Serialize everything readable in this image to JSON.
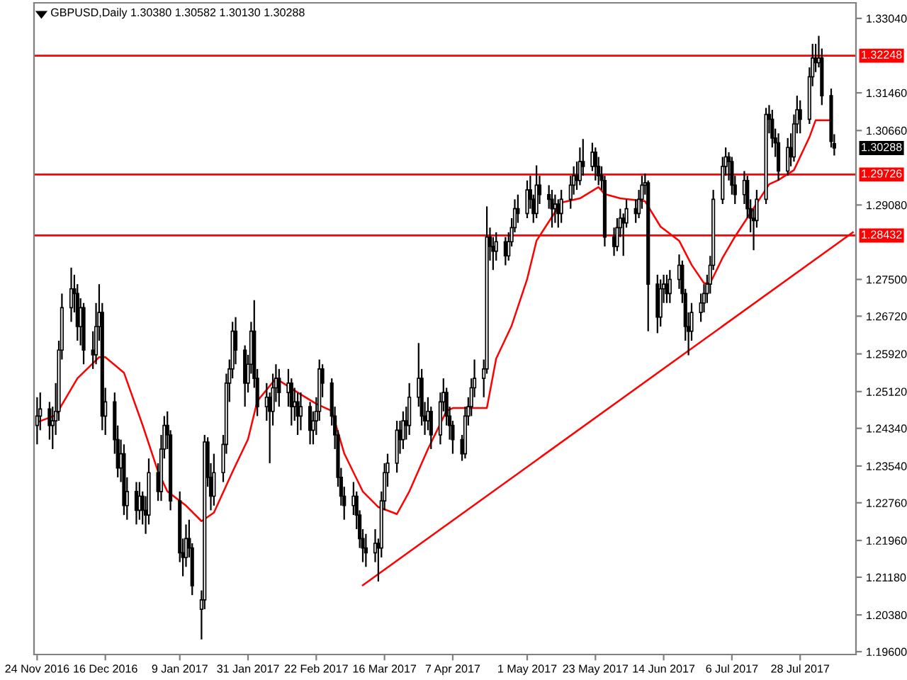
{
  "chart_data": {
    "type": "candlestick",
    "title": "GBPUSD,Daily 1.30380 1.30582 1.30130 1.30288",
    "x": [
      "2016-11-24",
      "2016-11-25",
      "2016-11-28",
      "2016-11-29",
      "2016-11-30",
      "2016-12-01",
      "2016-12-02",
      "2016-12-05",
      "2016-12-06",
      "2016-12-07",
      "2016-12-08",
      "2016-12-09",
      "2016-12-12",
      "2016-12-13",
      "2016-12-14",
      "2016-12-15",
      "2016-12-16",
      "2016-12-19",
      "2016-12-20",
      "2016-12-21",
      "2016-12-22",
      "2016-12-23",
      "2016-12-26",
      "2016-12-27",
      "2016-12-28",
      "2016-12-29",
      "2016-12-30",
      "2017-01-02",
      "2017-01-03",
      "2017-01-04",
      "2017-01-05",
      "2017-01-06",
      "2017-01-09",
      "2017-01-10",
      "2017-01-11",
      "2017-01-12",
      "2017-01-13",
      "2017-01-16",
      "2017-01-17",
      "2017-01-18",
      "2017-01-19",
      "2017-01-20",
      "2017-01-23",
      "2017-01-24",
      "2017-01-25",
      "2017-01-26",
      "2017-01-27",
      "2017-01-30",
      "2017-01-31",
      "2017-02-01",
      "2017-02-02",
      "2017-02-03",
      "2017-02-06",
      "2017-02-07",
      "2017-02-08",
      "2017-02-09",
      "2017-02-10",
      "2017-02-13",
      "2017-02-14",
      "2017-02-15",
      "2017-02-16",
      "2017-02-17",
      "2017-02-20",
      "2017-02-21",
      "2017-02-22",
      "2017-02-23",
      "2017-02-24",
      "2017-02-27",
      "2017-02-28",
      "2017-03-01",
      "2017-03-02",
      "2017-03-03",
      "2017-03-06",
      "2017-03-07",
      "2017-03-08",
      "2017-03-09",
      "2017-03-10",
      "2017-03-13",
      "2017-03-14",
      "2017-03-15",
      "2017-03-16",
      "2017-03-17",
      "2017-03-20",
      "2017-03-21",
      "2017-03-22",
      "2017-03-23",
      "2017-03-24",
      "2017-03-27",
      "2017-03-28",
      "2017-03-29",
      "2017-03-30",
      "2017-03-31",
      "2017-04-03",
      "2017-04-04",
      "2017-04-05",
      "2017-04-06",
      "2017-04-07",
      "2017-04-10",
      "2017-04-11",
      "2017-04-12",
      "2017-04-13",
      "2017-04-14",
      "2017-04-17",
      "2017-04-18",
      "2017-04-19",
      "2017-04-20",
      "2017-04-21",
      "2017-04-24",
      "2017-04-25",
      "2017-04-26",
      "2017-04-27",
      "2017-04-28",
      "2017-05-01",
      "2017-05-02",
      "2017-05-03",
      "2017-05-04",
      "2017-05-05",
      "2017-05-08",
      "2017-05-09",
      "2017-05-10",
      "2017-05-11",
      "2017-05-12",
      "2017-05-15",
      "2017-05-16",
      "2017-05-17",
      "2017-05-18",
      "2017-05-19",
      "2017-05-22",
      "2017-05-23",
      "2017-05-24",
      "2017-05-25",
      "2017-05-26",
      "2017-05-29",
      "2017-05-30",
      "2017-05-31",
      "2017-06-01",
      "2017-06-02",
      "2017-06-05",
      "2017-06-06",
      "2017-06-07",
      "2017-06-08",
      "2017-06-09",
      "2017-06-12",
      "2017-06-13",
      "2017-06-14",
      "2017-06-15",
      "2017-06-16",
      "2017-06-19",
      "2017-06-20",
      "2017-06-21",
      "2017-06-22",
      "2017-06-23",
      "2017-06-26",
      "2017-06-27",
      "2017-06-28",
      "2017-06-29",
      "2017-06-30",
      "2017-07-03",
      "2017-07-04",
      "2017-07-05",
      "2017-07-06",
      "2017-07-07",
      "2017-07-10",
      "2017-07-11",
      "2017-07-12",
      "2017-07-13",
      "2017-07-14",
      "2017-07-17",
      "2017-07-18",
      "2017-07-19",
      "2017-07-20",
      "2017-07-21",
      "2017-07-24",
      "2017-07-25",
      "2017-07-26",
      "2017-07-27",
      "2017-07-28",
      "2017-07-31",
      "2017-08-01",
      "2017-08-02",
      "2017-08-03",
      "2017-08-04",
      "2017-08-07",
      "2017-08-08"
    ],
    "series": [
      {
        "type": "candlestick",
        "color": "#000000",
        "ohlc": [
          [
            1.244,
            1.25,
            1.24,
            1.246
          ],
          [
            1.246,
            1.251,
            1.243,
            1.2475
          ],
          [
            1.2475,
            1.249,
            1.241,
            1.244
          ],
          [
            1.244,
            1.248,
            1.239,
            1.245
          ],
          [
            1.245,
            1.253,
            1.242,
            1.247
          ],
          [
            1.247,
            1.262,
            1.245,
            1.26
          ],
          [
            1.26,
            1.272,
            1.258,
            1.269
          ],
          [
            1.269,
            1.2775,
            1.266,
            1.273
          ],
          [
            1.273,
            1.276,
            1.268,
            1.272
          ],
          [
            1.272,
            1.274,
            1.262,
            1.265
          ],
          [
            1.265,
            1.271,
            1.261,
            1.269
          ],
          [
            1.269,
            1.27,
            1.257,
            1.26
          ],
          [
            1.26,
            1.264,
            1.256,
            1.259
          ],
          [
            1.259,
            1.27,
            1.257,
            1.265
          ],
          [
            1.265,
            1.274,
            1.262,
            1.268
          ],
          [
            1.268,
            1.27,
            1.243,
            1.246
          ],
          [
            1.246,
            1.252,
            1.242,
            1.249
          ],
          [
            1.249,
            1.251,
            1.238,
            1.241
          ],
          [
            1.241,
            1.244,
            1.233,
            1.235
          ],
          [
            1.235,
            1.241,
            1.232,
            1.238
          ],
          [
            1.238,
            1.24,
            1.225,
            1.227
          ],
          [
            1.227,
            1.233,
            1.224,
            1.23
          ],
          [
            1.23,
            1.232,
            1.223,
            1.226
          ],
          [
            1.226,
            1.232,
            1.224,
            1.229
          ],
          [
            1.229,
            1.23,
            1.223,
            1.226
          ],
          [
            1.226,
            1.229,
            1.221,
            1.225
          ],
          [
            1.225,
            1.237,
            1.223,
            1.234
          ],
          [
            1.234,
            1.236,
            1.228,
            1.23
          ],
          [
            1.23,
            1.242,
            1.228,
            1.239
          ],
          [
            1.239,
            1.246,
            1.237,
            1.244
          ],
          [
            1.244,
            1.247,
            1.239,
            1.242
          ],
          [
            1.242,
            1.243,
            1.226,
            1.228
          ],
          [
            1.228,
            1.23,
            1.215,
            1.217
          ],
          [
            1.217,
            1.22,
            1.212,
            1.216
          ],
          [
            1.216,
            1.223,
            1.214,
            1.22
          ],
          [
            1.22,
            1.224,
            1.216,
            1.218
          ],
          [
            1.218,
            1.219,
            1.208,
            1.21
          ],
          [
            1.205,
            1.209,
            1.1986,
            1.207
          ],
          [
            1.207,
            1.242,
            1.205,
            1.2405
          ],
          [
            1.2405,
            1.2415,
            1.231,
            1.233
          ],
          [
            1.233,
            1.236,
            1.226,
            1.229
          ],
          [
            1.229,
            1.238,
            1.227,
            1.234
          ],
          [
            1.234,
            1.242,
            1.232,
            1.24
          ],
          [
            1.24,
            1.255,
            1.238,
            1.253
          ],
          [
            1.253,
            1.258,
            1.249,
            1.256
          ],
          [
            1.256,
            1.266,
            1.254,
            1.264
          ],
          [
            1.264,
            1.267,
            1.257,
            1.26
          ],
          [
            1.26,
            1.261,
            1.248,
            1.253
          ],
          [
            1.253,
            1.259,
            1.251,
            1.257
          ],
          [
            1.257,
            1.266,
            1.255,
            1.264
          ],
          [
            1.264,
            1.2706,
            1.252,
            1.254
          ],
          [
            1.254,
            1.256,
            1.246,
            1.248
          ],
          [
            1.248,
            1.253,
            1.245,
            1.25
          ],
          [
            1.25,
            1.251,
            1.236,
            1.247
          ],
          [
            1.247,
            1.255,
            1.244,
            1.252
          ],
          [
            1.252,
            1.257,
            1.249,
            1.254
          ],
          [
            1.254,
            1.256,
            1.248,
            1.251
          ],
          [
            1.251,
            1.256,
            1.248,
            1.253
          ],
          [
            1.253,
            1.254,
            1.244,
            1.248
          ],
          [
            1.248,
            1.252,
            1.245,
            1.249
          ],
          [
            1.249,
            1.251,
            1.242,
            1.246
          ],
          [
            1.246,
            1.251,
            1.243,
            1.248
          ],
          [
            1.248,
            1.249,
            1.24,
            1.243
          ],
          [
            1.243,
            1.247,
            1.24,
            1.245
          ],
          [
            1.245,
            1.25,
            1.242,
            1.247
          ],
          [
            1.247,
            1.258,
            1.245,
            1.256
          ],
          [
            1.256,
            1.257,
            1.25,
            1.253
          ],
          [
            1.253,
            1.254,
            1.244,
            1.246
          ],
          [
            1.246,
            1.248,
            1.239,
            1.242
          ],
          [
            1.242,
            1.243,
            1.231,
            1.233
          ],
          [
            1.233,
            1.235,
            1.227,
            1.229
          ],
          [
            1.229,
            1.231,
            1.224,
            1.227
          ],
          [
            1.227,
            1.232,
            1.225,
            1.229
          ],
          [
            1.229,
            1.23,
            1.222,
            1.225
          ],
          [
            1.225,
            1.226,
            1.218,
            1.22
          ],
          [
            1.22,
            1.222,
            1.215,
            1.218
          ],
          [
            1.218,
            1.221,
            1.214,
            1.217
          ],
          [
            1.217,
            1.222,
            1.215,
            1.219
          ],
          [
            1.219,
            1.22,
            1.2109,
            1.218
          ],
          [
            1.218,
            1.23,
            1.216,
            1.228
          ],
          [
            1.228,
            1.236,
            1.226,
            1.234
          ],
          [
            1.234,
            1.238,
            1.231,
            1.236
          ],
          [
            1.236,
            1.245,
            1.234,
            1.243
          ],
          [
            1.243,
            1.245,
            1.238,
            1.241
          ],
          [
            1.241,
            1.247,
            1.239,
            1.245
          ],
          [
            1.245,
            1.248,
            1.241,
            1.244
          ],
          [
            1.244,
            1.253,
            1.242,
            1.25
          ],
          [
            1.25,
            1.2615,
            1.248,
            1.254
          ],
          [
            1.254,
            1.256,
            1.244,
            1.246
          ],
          [
            1.246,
            1.249,
            1.242,
            1.245
          ],
          [
            1.245,
            1.25,
            1.243,
            1.247
          ],
          [
            1.247,
            1.248,
            1.239,
            1.242
          ],
          [
            1.242,
            1.251,
            1.24,
            1.249
          ],
          [
            1.249,
            1.254,
            1.247,
            1.251
          ],
          [
            1.251,
            1.252,
            1.244,
            1.246
          ],
          [
            1.246,
            1.248,
            1.241,
            1.244
          ],
          [
            1.244,
            1.245,
            1.238,
            1.241
          ],
          [
            1.241,
            1.242,
            1.2365,
            1.238
          ],
          [
            1.238,
            1.248,
            1.237,
            1.246
          ],
          [
            1.246,
            1.25,
            1.244,
            1.248
          ],
          [
            1.248,
            1.254,
            1.246,
            1.252
          ],
          [
            1.252,
            1.258,
            1.25,
            1.254
          ],
          [
            1.254,
            1.258,
            1.25,
            1.256
          ],
          [
            1.256,
            1.2905,
            1.255,
            1.284
          ],
          [
            1.284,
            1.286,
            1.279,
            1.282
          ],
          [
            1.282,
            1.284,
            1.277,
            1.281
          ],
          [
            1.281,
            1.285,
            1.279,
            1.283
          ],
          [
            1.283,
            1.284,
            1.278,
            1.28
          ],
          [
            1.28,
            1.285,
            1.279,
            1.283
          ],
          [
            1.283,
            1.288,
            1.282,
            1.286
          ],
          [
            1.286,
            1.292,
            1.285,
            1.29
          ],
          [
            1.29,
            1.293,
            1.287,
            1.289
          ],
          [
            1.289,
            1.296,
            1.288,
            1.294
          ],
          [
            1.294,
            1.297,
            1.29,
            1.292
          ],
          [
            1.292,
            1.293,
            1.287,
            1.289
          ],
          [
            1.289,
            1.2992,
            1.288,
            1.295
          ],
          [
            1.295,
            1.297,
            1.291,
            1.293
          ],
          [
            1.293,
            1.295,
            1.29,
            1.292
          ],
          [
            1.292,
            1.294,
            1.286,
            1.29
          ],
          [
            1.29,
            1.293,
            1.287,
            1.291
          ],
          [
            1.291,
            1.292,
            1.286,
            1.289
          ],
          [
            1.289,
            1.294,
            1.287,
            1.292
          ],
          [
            1.292,
            1.297,
            1.29,
            1.295
          ],
          [
            1.295,
            1.299,
            1.293,
            1.297
          ],
          [
            1.297,
            1.3,
            1.294,
            1.296
          ],
          [
            1.296,
            1.303,
            1.295,
            1.3
          ],
          [
            1.3,
            1.3048,
            1.297,
            1.299
          ],
          [
            1.299,
            1.304,
            1.298,
            1.302
          ],
          [
            1.302,
            1.303,
            1.296,
            1.299
          ],
          [
            1.299,
            1.301,
            1.295,
            1.297
          ],
          [
            1.297,
            1.299,
            1.294,
            1.296
          ],
          [
            1.296,
            1.297,
            1.282,
            1.284
          ],
          [
            1.284,
            1.286,
            1.28,
            1.282
          ],
          [
            1.282,
            1.288,
            1.281,
            1.286
          ],
          [
            1.286,
            1.29,
            1.284,
            1.288
          ],
          [
            1.288,
            1.289,
            1.28,
            1.287
          ],
          [
            1.287,
            1.292,
            1.286,
            1.29
          ],
          [
            1.29,
            1.292,
            1.287,
            1.289
          ],
          [
            1.289,
            1.294,
            1.288,
            1.292
          ],
          [
            1.292,
            1.297,
            1.29,
            1.295
          ],
          [
            1.295,
            1.2975,
            1.293,
            1.2955
          ],
          [
            1.2955,
            1.296,
            1.264,
            1.274
          ],
          [
            1.274,
            1.276,
            1.2636,
            1.267
          ],
          [
            1.267,
            1.275,
            1.265,
            1.273
          ],
          [
            1.273,
            1.276,
            1.27,
            1.274
          ],
          [
            1.274,
            1.276,
            1.27,
            1.272
          ],
          [
            1.272,
            1.277,
            1.27,
            1.275
          ],
          [
            1.275,
            1.2803,
            1.273,
            1.278
          ],
          [
            1.278,
            1.279,
            1.27,
            1.272
          ],
          [
            1.272,
            1.273,
            1.262,
            1.265
          ],
          [
            1.265,
            1.268,
            1.2589,
            1.264
          ],
          [
            1.264,
            1.27,
            1.262,
            1.268
          ],
          [
            1.268,
            1.272,
            1.266,
            1.27
          ],
          [
            1.27,
            1.274,
            1.268,
            1.272
          ],
          [
            1.272,
            1.276,
            1.27,
            1.274
          ],
          [
            1.274,
            1.28,
            1.272,
            1.278
          ],
          [
            1.278,
            1.294,
            1.277,
            1.292
          ],
          [
            1.292,
            1.301,
            1.291,
            1.299
          ],
          [
            1.299,
            1.303,
            1.297,
            1.301
          ],
          [
            1.301,
            1.302,
            1.296,
            1.3
          ],
          [
            1.3,
            1.301,
            1.293,
            1.295
          ],
          [
            1.295,
            1.297,
            1.291,
            1.293
          ],
          [
            1.293,
            1.298,
            1.291,
            1.296
          ],
          [
            1.296,
            1.297,
            1.288,
            1.29
          ],
          [
            1.29,
            1.292,
            1.285,
            1.288
          ],
          [
            1.288,
            1.29,
            1.2812,
            1.2875
          ],
          [
            1.2875,
            1.294,
            1.286,
            1.292
          ],
          [
            1.292,
            1.3114,
            1.291,
            1.31
          ],
          [
            1.31,
            1.312,
            1.306,
            1.309
          ],
          [
            1.309,
            1.311,
            1.303,
            1.305
          ],
          [
            1.305,
            1.307,
            1.301,
            1.304
          ],
          [
            1.304,
            1.306,
            1.296,
            1.298
          ],
          [
            1.298,
            1.305,
            1.297,
            1.303
          ],
          [
            1.303,
            1.306,
            1.299,
            1.301
          ],
          [
            1.301,
            1.31,
            1.3,
            1.308
          ],
          [
            1.308,
            1.314,
            1.306,
            1.311
          ],
          [
            1.311,
            1.313,
            1.306,
            1.309
          ],
          [
            1.309,
            1.32,
            1.308,
            1.318
          ],
          [
            1.318,
            1.325,
            1.316,
            1.322
          ],
          [
            1.322,
            1.325,
            1.319,
            1.321
          ],
          [
            1.321,
            1.3267,
            1.32,
            1.322
          ],
          [
            1.322,
            1.324,
            1.312,
            1.314
          ],
          [
            1.314,
            1.3155,
            1.303,
            1.3043
          ],
          [
            1.3038,
            1.30582,
            1.3013,
            1.30288
          ]
        ]
      },
      {
        "type": "line",
        "color": "#ff0000",
        "x": [
          "2016-11-24",
          "2016-11-30",
          "2016-12-07",
          "2016-12-14",
          "2016-12-16",
          "2016-12-22",
          "2016-12-28",
          "2017-01-02",
          "2017-01-05",
          "2017-01-11",
          "2017-01-16",
          "2017-01-18",
          "2017-01-20",
          "2017-01-26",
          "2017-01-31",
          "2017-02-03",
          "2017-02-09",
          "2017-02-16",
          "2017-02-22",
          "2017-02-27",
          "2017-03-03",
          "2017-03-09",
          "2017-03-14",
          "2017-03-20",
          "2017-03-24",
          "2017-03-30",
          "2017-04-05",
          "2017-04-07",
          "2017-04-18",
          "2017-04-21",
          "2017-04-26",
          "2017-05-01",
          "2017-05-04",
          "2017-05-09",
          "2017-05-12",
          "2017-05-18",
          "2017-05-24",
          "2017-05-26",
          "2017-05-31",
          "2017-06-08",
          "2017-06-13",
          "2017-06-19",
          "2017-06-23",
          "2017-06-27",
          "2017-06-29",
          "2017-07-03",
          "2017-07-07",
          "2017-07-13",
          "2017-07-18",
          "2017-07-21",
          "2017-07-26",
          "2017-07-31",
          "2017-08-02",
          "2017-08-07"
        ],
        "values": [
          1.2447,
          1.2462,
          1.254,
          1.2585,
          1.2585,
          1.2552,
          1.2441,
          1.2342,
          1.23,
          1.227,
          1.2237,
          1.2246,
          1.2255,
          1.2342,
          1.2411,
          1.2492,
          1.254,
          1.251,
          1.2486,
          1.2471,
          1.2381,
          1.23,
          1.2267,
          1.2252,
          1.23,
          1.239,
          1.2471,
          1.2477,
          1.2477,
          1.2582,
          1.2652,
          1.2751,
          1.2832,
          1.2883,
          1.2913,
          1.2922,
          1.2946,
          1.2931,
          1.2922,
          1.2916,
          1.2862,
          1.2832,
          1.2781,
          1.2742,
          1.2742,
          1.2796,
          1.2841,
          1.2901,
          1.2952,
          1.2961,
          1.2982,
          1.3052,
          1.3088,
          1.3088
        ]
      },
      {
        "type": "line",
        "color": "#ff0000",
        "x": [
          "2017-03-09",
          "2017-08-14"
        ],
        "values": [
          1.2101,
          1.285
        ]
      }
    ],
    "xlim": [
      "2016-11-23",
      "2017-08-15"
    ],
    "xticks": [
      {
        "value": "2016-11-24",
        "label": "24 Nov 2016"
      },
      {
        "value": "2016-12-16",
        "label": "16 Dec 2016"
      },
      {
        "value": "2017-01-09",
        "label": "9 Jan 2017"
      },
      {
        "value": "2017-01-31",
        "label": "31 Jan 2017"
      },
      {
        "value": "2017-02-22",
        "label": "22 Feb 2017"
      },
      {
        "value": "2017-03-16",
        "label": "16 Mar 2017"
      },
      {
        "value": "2017-04-07",
        "label": "7 Apr 2017"
      },
      {
        "value": "2017-05-01",
        "label": "1 May 2017"
      },
      {
        "value": "2017-05-23",
        "label": "23 May 2017"
      },
      {
        "value": "2017-06-14",
        "label": "14 Jun 2017"
      },
      {
        "value": "2017-07-06",
        "label": "6 Jul 2017"
      },
      {
        "value": "2017-07-28",
        "label": "28 Jul 2017"
      }
    ],
    "ylim": [
      1.1954,
      1.3337
    ],
    "yticks": [
      {
        "value": 1.196,
        "label": "1.19600"
      },
      {
        "value": 1.2038,
        "label": "1.20380"
      },
      {
        "value": 1.2118,
        "label": "1.21180"
      },
      {
        "value": 1.2196,
        "label": "1.21960"
      },
      {
        "value": 1.2276,
        "label": "1.22760"
      },
      {
        "value": 1.2354,
        "label": "1.23540"
      },
      {
        "value": 1.2434,
        "label": "1.24340"
      },
      {
        "value": 1.2512,
        "label": "1.25120"
      },
      {
        "value": 1.2592,
        "label": "1.25920"
      },
      {
        "value": 1.2672,
        "label": "1.26720"
      },
      {
        "value": 1.275,
        "label": "1.27500"
      },
      {
        "value": 1.2908,
        "label": "1.29080"
      },
      {
        "value": 1.3066,
        "label": "1.30660"
      },
      {
        "value": 1.3146,
        "label": "1.31460"
      },
      {
        "value": 1.3304,
        "label": "1.33040"
      }
    ],
    "ref_lines": [
      {
        "axis": "y",
        "value": 1.32248,
        "label": "1.32248",
        "color": "#ff0000",
        "line_style": "solid"
      },
      {
        "axis": "y",
        "value": 1.29726,
        "label": "1.29726",
        "color": "#ff0000",
        "line_style": "solid"
      },
      {
        "axis": "y",
        "value": 1.28432,
        "label": "1.28432",
        "color": "#ff0000",
        "line_style": "solid"
      }
    ],
    "annotations": [
      "1.30288"
    ],
    "grid": false,
    "legend": false
  }
}
